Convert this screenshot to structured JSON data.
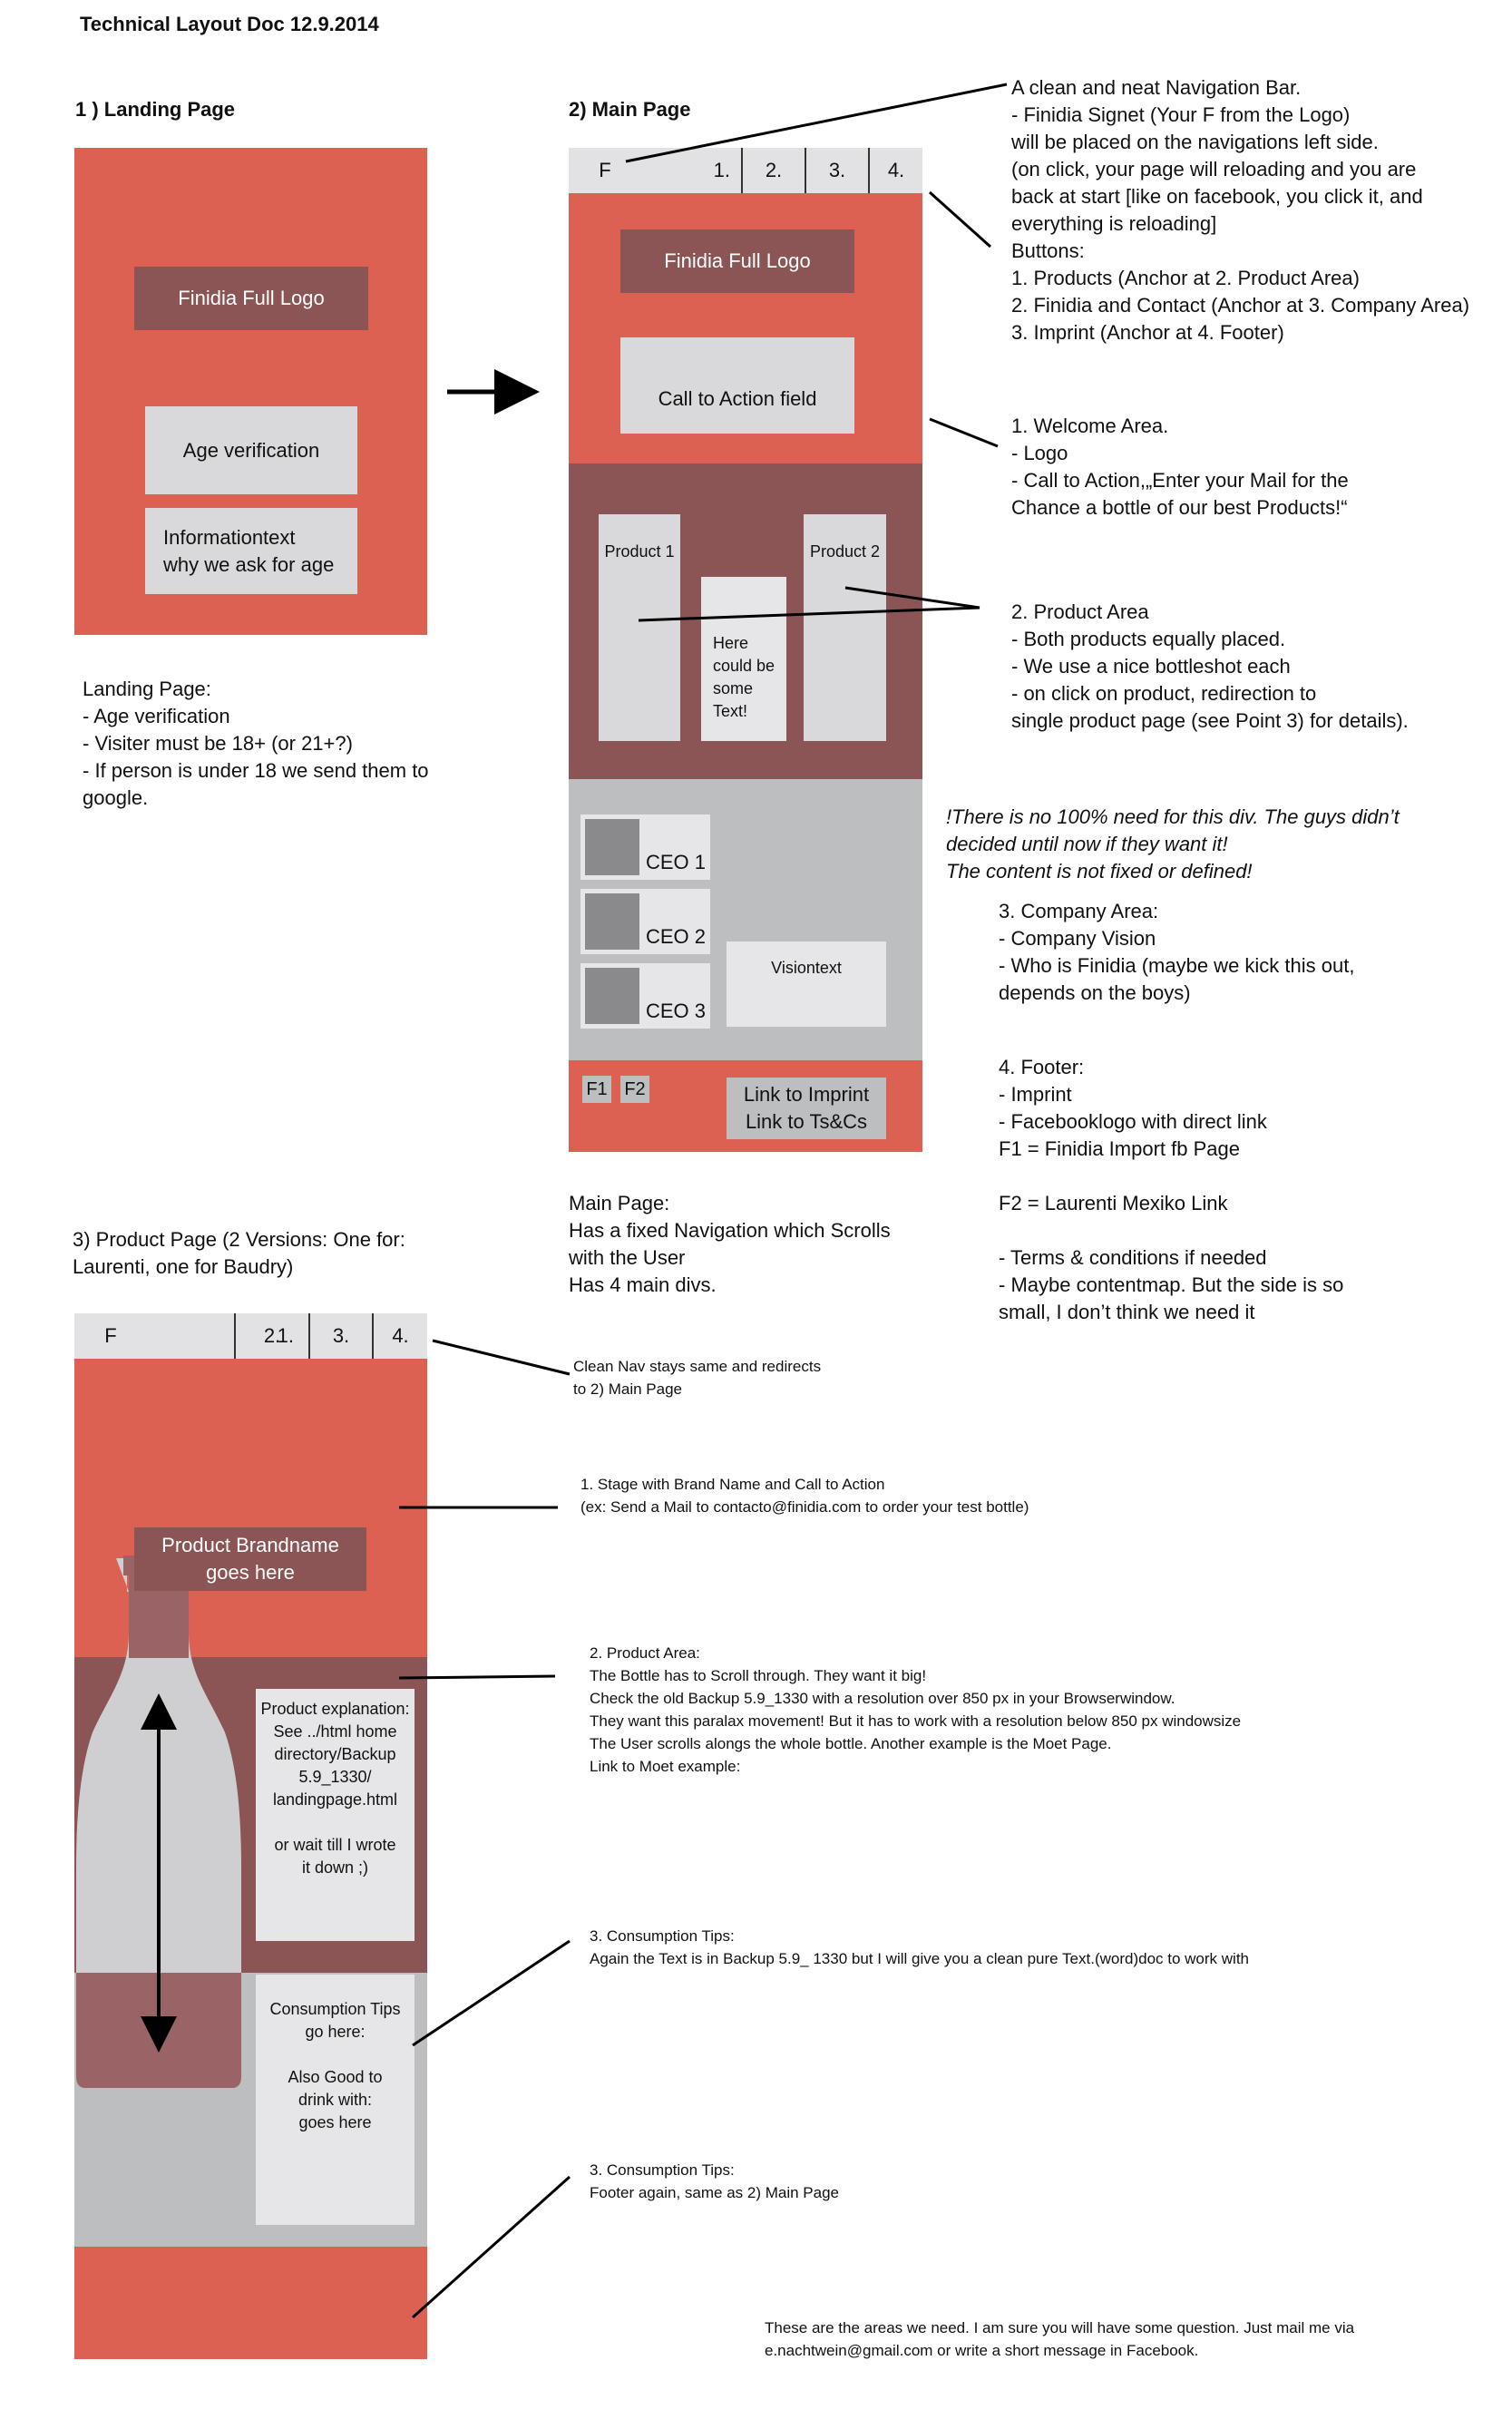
{
  "doc_title": "Technical Layout Doc 12.9.2014",
  "landing": {
    "heading": "1 ) Landing Page",
    "logo": "Finidia Full Logo",
    "age_verification": "Age verification",
    "info": "Informationtext\nwhy we ask for age",
    "description": "Landing Page:\n- Age verification\n          - Visiter must be 18+ (or 21+?)\n- If person is under 18 we send them to\ngoogle."
  },
  "main": {
    "heading": "2) Main Page",
    "nav": [
      "F",
      "1.",
      "2.",
      "3.",
      "4."
    ],
    "logo": "Finidia Full Logo",
    "cta": "Call to Action field",
    "product1": "Product 1",
    "product2": "Product 2",
    "middle_text": "Here\ncould be\nsome\nText!",
    "ceo1": "CEO 1",
    "ceo2": "CEO 2",
    "ceo3": "CEO 3",
    "vision": "Visiontext",
    "f1": "F1",
    "f2": "F2",
    "imprint_link": "Link to Imprint\nLink to Ts&Cs",
    "description": "Main Page:\nHas a fixed Navigation which Scrolls\nwith the User\nHas 4 main divs."
  },
  "notes": {
    "nav_bar": "A clean and neat Navigation Bar.\n- Finidia Signet (Your F from the Logo)\nwill be placed on the navigations left side.\n(on click, your page will reloading and you are\nback at start [like on facebook, you click it, and\neverything is reloading]\nButtons:\n1. Products (Anchor at 2. Product Area)\n2. Finidia and Contact (Anchor at 3. Company Area)\n3. Imprint (Anchor at 4. Footer)",
    "welcome": "1. Welcome Area.\n- Logo\n- Call to Action,„Enter your Mail for the\nChance a bottle of our best Products!“",
    "product_area": "2. Product Area\n- Both products equally placed.\n          - We use a nice  bottleshot each\n- on click on product, redirection to\nsingle product page (see Point 3) for details).",
    "disclaimer": "!There is no 100% need for this div. The guys didn’t\ndecided until now if they want it!\nThe content is not fixed or defined!",
    "company": "3. Company Area:\n- Company Vision\n- Who is Finidia (maybe we kick this out,\ndepends on the boys)",
    "footer": "4. Footer:\n- Imprint\n- Facebooklogo with direct link\n          F1 = Finidia Import fb Page\n\n          F2 = Laurenti Mexiko Link\n\n- Terms & conditions if needed\n- Maybe contentmap. But the side is so\nsmall, I don’t think we need it"
  },
  "product_page": {
    "heading": "3) Product Page (2 Versions: One for:\nLaurenti, one for Baudry)",
    "nav": [
      "F",
      "1.",
      "2.",
      "3.",
      "4."
    ],
    "brandname": "Product Brandname\ngoes here",
    "explanation": "Product explanation:\nSee ../html home\ndirectory/Backup\n5.9_1330/\nlandingpage.html\n\nor wait till I wrote\nit down ;)",
    "tips": "Consumption Tips\ngo here:\n\nAlso Good to\ndrink with:\ngoes here",
    "note_nav": "Clean Nav stays same and redirects\nto 2) Main Page",
    "note_stage": "1. Stage with Brand Name and Call to Action\n(ex: Send a Mail to contacto@finidia.com to order your test bottle)",
    "note_product": "2. Product Area:\nThe Bottle has to Scroll through. They want it big!\nCheck the old Backup 5.9_1330 with a resolution over 850 px in your Browserwindow.\nThey want this paralax movement! But it has to work with a resolution below 850 px windowsize\nThe User scrolls alongs the whole bottle. Another example is the Moet Page.\nLink to Moet example:",
    "note_tips": "3. Consumption Tips:\nAgain the Text is in Backup 5.9_ 1330  but I will give you a clean pure Text.(word)doc to work with",
    "note_footer": "3. Consumption Tips:\nFooter again, same as 2) Main Page"
  },
  "closing": "These are the areas  we need. I am sure you will have some question. Just mail me via\ne.nachtwein@gmail.com or write a short message in Facebook.",
  "colors": {
    "red": "#dc6152",
    "dark": "#8b5556",
    "grey": "#bdbec0",
    "light": "#e6e6e8"
  }
}
